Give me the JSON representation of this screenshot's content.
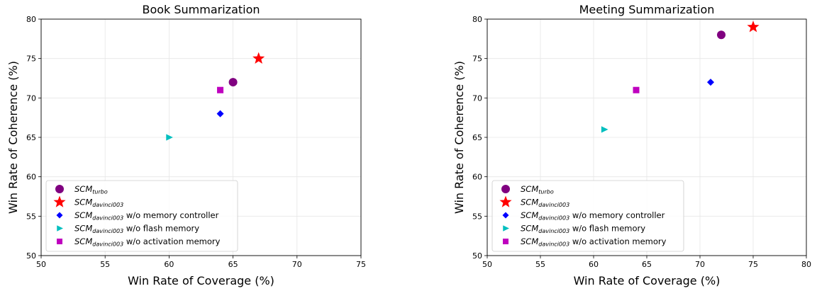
{
  "chart_data": [
    {
      "type": "scatter",
      "title": "Book Summarization",
      "xlabel": "Win Rate of Coverage (%)",
      "ylabel": "Win Rate of Coherence (%)",
      "xlim": [
        50,
        75
      ],
      "ylim": [
        50,
        80
      ],
      "xticks": [
        50,
        55,
        60,
        65,
        70,
        75
      ],
      "yticks": [
        50,
        55,
        60,
        65,
        70,
        75,
        80
      ],
      "grid": true,
      "legend": "lower-left",
      "series": [
        {
          "name_main": "SCM",
          "name_sub": "turbo",
          "name_suffix": "",
          "marker": "circle",
          "color": "#800080",
          "x": 65,
          "y": 72
        },
        {
          "name_main": "SCM",
          "name_sub": "davinci003",
          "name_suffix": "",
          "marker": "star",
          "color": "#ff0000",
          "x": 67,
          "y": 75
        },
        {
          "name_main": "SCM",
          "name_sub": "davinci003",
          "name_suffix": " w/o memory controller",
          "marker": "diamond",
          "color": "#0000ff",
          "x": 64,
          "y": 68
        },
        {
          "name_main": "SCM",
          "name_sub": "davinci003",
          "name_suffix": " w/o flash memory",
          "marker": "triangle-right",
          "color": "#00bfbf",
          "x": 60,
          "y": 65
        },
        {
          "name_main": "SCM",
          "name_sub": "davinci003",
          "name_suffix": " w/o activation memory",
          "marker": "square",
          "color": "#bf00bf",
          "x": 64,
          "y": 71
        }
      ]
    },
    {
      "type": "scatter",
      "title": "Meeting Summarization",
      "xlabel": "Win Rate of Coverage (%)",
      "ylabel": "Win Rate of Coherence (%)",
      "xlim": [
        50,
        80
      ],
      "ylim": [
        50,
        80
      ],
      "xticks": [
        50,
        55,
        60,
        65,
        70,
        75,
        80
      ],
      "yticks": [
        50,
        55,
        60,
        65,
        70,
        75,
        80
      ],
      "grid": true,
      "legend": "lower-left",
      "series": [
        {
          "name_main": "SCM",
          "name_sub": "turbo",
          "name_suffix": "",
          "marker": "circle",
          "color": "#800080",
          "x": 72,
          "y": 78
        },
        {
          "name_main": "SCM",
          "name_sub": "davinci003",
          "name_suffix": "",
          "marker": "star",
          "color": "#ff0000",
          "x": 75,
          "y": 79
        },
        {
          "name_main": "SCM",
          "name_sub": "davinci003",
          "name_suffix": " w/o memory controller",
          "marker": "diamond",
          "color": "#0000ff",
          "x": 71,
          "y": 72
        },
        {
          "name_main": "SCM",
          "name_sub": "davinci003",
          "name_suffix": " w/o flash memory",
          "marker": "triangle-right",
          "color": "#00bfbf",
          "x": 61,
          "y": 66
        },
        {
          "name_main": "SCM",
          "name_sub": "davinci003",
          "name_suffix": " w/o activation memory",
          "marker": "square",
          "color": "#bf00bf",
          "x": 64,
          "y": 71
        }
      ]
    }
  ]
}
